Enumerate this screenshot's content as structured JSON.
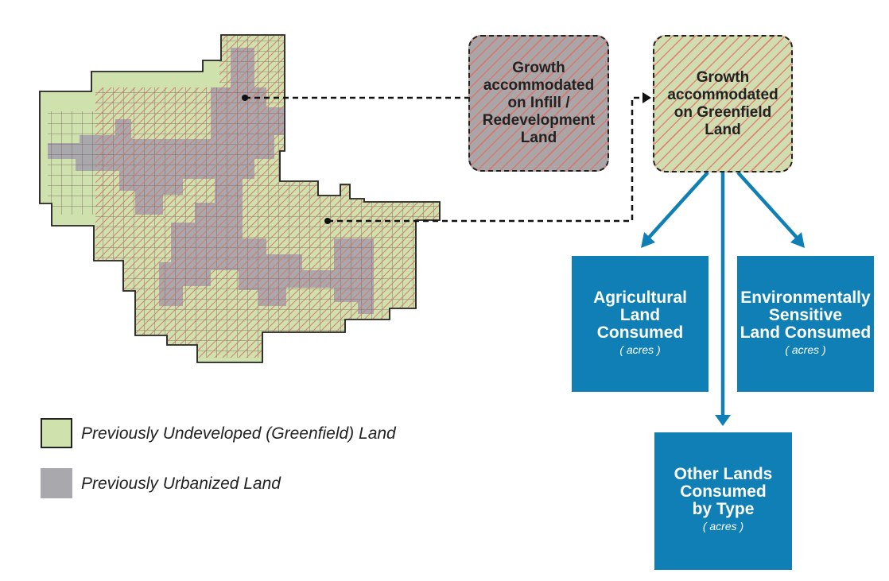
{
  "colors": {
    "greenfield": "#cfe1ad",
    "urbanized": "#a9a8ad",
    "hatch": "#d9776e",
    "box_blue": "#0f7fb5",
    "grid_line": "#5a4a4a"
  },
  "growth_boxes": {
    "infill": {
      "line1": "Growth",
      "line2": "accommodated",
      "line3": "on Infill /",
      "line4": "Redevelopment",
      "line5": "Land"
    },
    "greenfield": {
      "line1": "Growth",
      "line2": "accommodated",
      "line3": "on Greenfield",
      "line4": "Land"
    }
  },
  "outcome_boxes": {
    "agricultural": {
      "line1": "Agricultural",
      "line2": "Land",
      "line3": "Consumed",
      "unit": "( acres )"
    },
    "environmental": {
      "line1": "Environmentally",
      "line2": "Sensitive",
      "line3": "Land Consumed",
      "unit": "( acres )"
    },
    "other": {
      "line1": "Other Lands",
      "line2": "Consumed",
      "line3": "by Type",
      "unit": "( acres )"
    }
  },
  "legend": {
    "greenfield_label": "Previously Undeveloped (Greenfield) Land",
    "urbanized_label": "Previously Urbanized Land"
  }
}
